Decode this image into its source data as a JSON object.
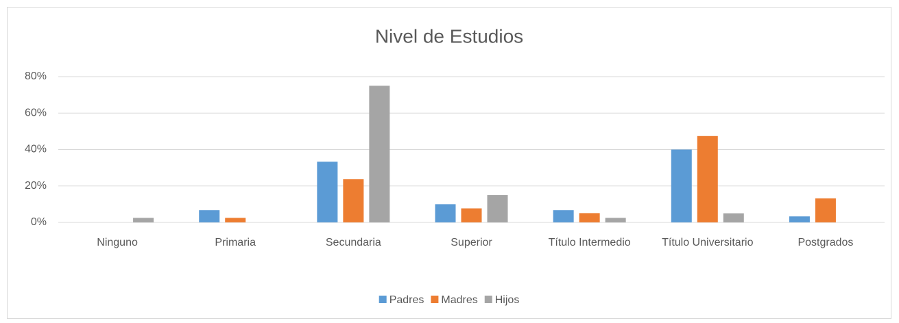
{
  "chart_data": {
    "type": "bar",
    "title": "Nivel de Estudios",
    "categories": [
      "Ninguno",
      "Primaria",
      "Secundaria",
      "Superior",
      "Título Intermedio",
      "Título Universitario",
      "Postgrados"
    ],
    "series": [
      {
        "name": "Padres",
        "color": "#5b9bd5",
        "values": [
          0,
          6.7,
          33.3,
          10,
          6.7,
          40,
          3.3
        ]
      },
      {
        "name": "Madres",
        "color": "#ed7d31",
        "values": [
          0,
          2.5,
          23.7,
          7.7,
          5.1,
          47.4,
          13.2
        ]
      },
      {
        "name": "Hijos",
        "color": "#a5a5a5",
        "values": [
          2.5,
          0,
          75,
          15,
          2.5,
          5,
          0
        ]
      }
    ],
    "ylim": [
      0,
      80
    ],
    "yticks": [
      {
        "value": 0,
        "label": "0%"
      },
      {
        "value": 20,
        "label": "20%"
      },
      {
        "value": 40,
        "label": "40%"
      },
      {
        "value": 60,
        "label": "60%"
      },
      {
        "value": 80,
        "label": "80%"
      }
    ],
    "grid": true,
    "legend": "bottom"
  }
}
